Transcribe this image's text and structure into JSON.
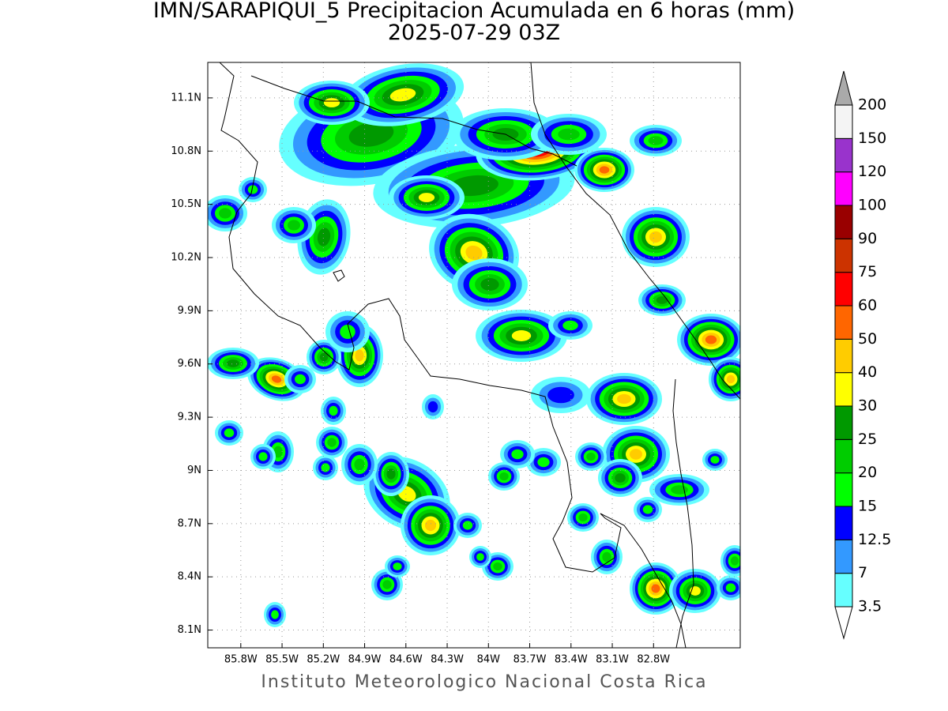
{
  "map": {
    "title": "IMN/SARAPIQUI_5 Precipitacion Acumulada en 6 horas (mm)",
    "subtitle": "2025-07-29 03Z",
    "credit": "Instituto Meteorologico Nacional Costa Rica",
    "lon_range": [
      -86.04,
      -82.17
    ],
    "lat_range": [
      8.0,
      11.3
    ],
    "lon_ticks": [
      {
        "value": -85.8,
        "label": "85.8W"
      },
      {
        "value": -85.5,
        "label": "85.5W"
      },
      {
        "value": -85.2,
        "label": "85.2W"
      },
      {
        "value": -84.9,
        "label": "84.9W"
      },
      {
        "value": -84.6,
        "label": "84.6W"
      },
      {
        "value": -84.3,
        "label": "84.3W"
      },
      {
        "value": -84.0,
        "label": "84W"
      },
      {
        "value": -83.7,
        "label": "83.7W"
      },
      {
        "value": -83.4,
        "label": "83.4W"
      },
      {
        "value": -83.1,
        "label": "83.1W"
      },
      {
        "value": -82.8,
        "label": "82.8W"
      }
    ],
    "lat_ticks": [
      {
        "value": 11.1,
        "label": "11.1N"
      },
      {
        "value": 10.8,
        "label": "10.8N"
      },
      {
        "value": 10.5,
        "label": "10.5N"
      },
      {
        "value": 10.2,
        "label": "10.2N"
      },
      {
        "value": 9.9,
        "label": "9.9N"
      },
      {
        "value": 9.6,
        "label": "9.6N"
      },
      {
        "value": 9.3,
        "label": "9.3N"
      },
      {
        "value": 9.0,
        "label": "9N"
      },
      {
        "value": 8.7,
        "label": "8.7N"
      },
      {
        "value": 8.4,
        "label": "8.4N"
      },
      {
        "value": 8.1,
        "label": "8.1N"
      }
    ],
    "colorbar": {
      "levels": [
        3.5,
        7,
        12.5,
        15,
        20,
        25,
        30,
        40,
        50,
        60,
        75,
        90,
        100,
        120,
        150,
        200
      ],
      "colors": [
        "#66ffff",
        "#3399ff",
        "#0000ff",
        "#00ff00",
        "#00cc00",
        "#009900",
        "#ffff00",
        "#ffcc00",
        "#ff6600",
        "#ff0000",
        "#cc3300",
        "#990000",
        "#ff00ff",
        "#9933cc",
        "#f4f4f4"
      ],
      "under_color": "#ffffff",
      "over_color": "#aaaaaa"
    }
  }
}
